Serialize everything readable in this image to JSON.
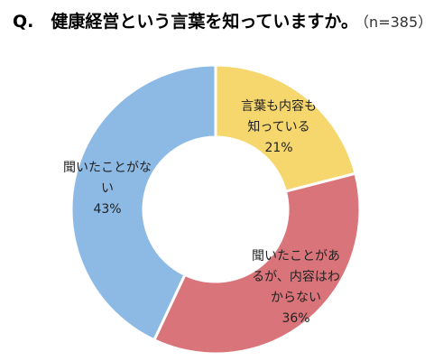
{
  "chart_data": {
    "type": "pie",
    "title": "Q.　健康経営という言葉を知っていますか。",
    "sample_size": "（n=385）",
    "slices": [
      {
        "label_lines": [
          "言葉も内容も",
          "知っている"
        ],
        "value": 21,
        "value_label": "21%",
        "color": "#f5d76e"
      },
      {
        "label_lines": [
          "聞いたことがあ",
          "るが、内容はわ",
          "からない"
        ],
        "value": 36,
        "value_label": "36%",
        "color": "#d9757a"
      },
      {
        "label_lines": [
          "聞いたことがな",
          "い"
        ],
        "value": 43,
        "value_label": "43%",
        "color": "#8cbae5"
      }
    ],
    "legend": "none"
  }
}
